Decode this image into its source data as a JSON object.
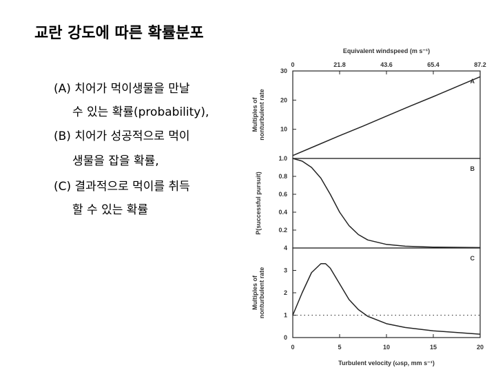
{
  "slide": {
    "title": "교란 강도에 따른 확률분포",
    "items": [
      "(A) 치어가 먹이생물을 만날",
      "수 있는 확률(probability),",
      "(B) 치어가 성공적으로 먹이",
      "생물을 잡을 확률,",
      "(C) 결과적으로 먹이를 취득",
      "할 수 있는 확률"
    ]
  },
  "chart_data": [
    {
      "type": "line",
      "panel": "A",
      "ylabel": [
        "Multiples of",
        "nonturbulent rate"
      ],
      "x2label": "Equivalent windspeed (m s⁻¹)",
      "x2lim": [
        0,
        87.2
      ],
      "x2ticks": [
        0,
        21.8,
        43.6,
        65.4,
        87.2
      ],
      "xlim": [
        0,
        20
      ],
      "ylim": [
        0,
        30
      ],
      "yticks": [
        10,
        20,
        30
      ],
      "color": "#222222",
      "x": [
        0,
        2.5,
        5,
        7.5,
        10,
        12.5,
        15,
        17.5,
        20
      ],
      "values": [
        1,
        4.4,
        7.8,
        11.1,
        14.5,
        17.9,
        21.2,
        24.6,
        28
      ]
    },
    {
      "type": "line",
      "panel": "B",
      "ylabel": [
        "P(successful pursuit)"
      ],
      "xlim": [
        0,
        20
      ],
      "ylim": [
        0,
        1
      ],
      "yticks": [
        0.2,
        0.4,
        0.6,
        0.8,
        {
          "value": 1,
          "label": "1.0"
        }
      ],
      "color": "#222222",
      "x": [
        0,
        1,
        2,
        3,
        4,
        5,
        6,
        7,
        8,
        10,
        12,
        15,
        20
      ],
      "values": [
        1.0,
        0.97,
        0.9,
        0.78,
        0.6,
        0.4,
        0.25,
        0.15,
        0.09,
        0.04,
        0.02,
        0.01,
        0.005
      ]
    },
    {
      "type": "line",
      "panel": "C",
      "ylabel": [
        "Multiples of",
        "nonturbulent rate"
      ],
      "xlabel": "Turbulent velocity (ωsp, mm s⁻¹)",
      "xlim": [
        0,
        20
      ],
      "xticks": [
        0,
        5,
        10,
        15,
        20
      ],
      "ylim": [
        0,
        4
      ],
      "yticks": [
        0,
        1,
        2,
        3,
        4
      ],
      "reference": 1,
      "color": "#222222",
      "x": [
        0,
        1,
        2,
        3,
        3.5,
        4,
        5,
        6,
        7,
        8,
        10,
        12,
        15,
        20
      ],
      "values": [
        1,
        2,
        2.9,
        3.3,
        3.3,
        3.1,
        2.4,
        1.7,
        1.25,
        0.95,
        0.62,
        0.45,
        0.3,
        0.15
      ]
    }
  ]
}
